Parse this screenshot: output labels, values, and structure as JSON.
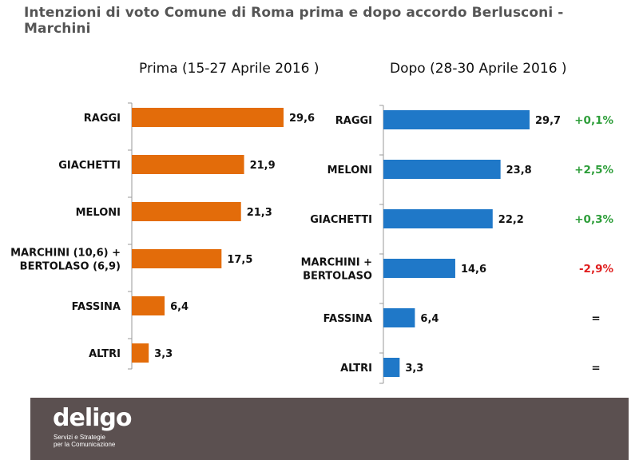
{
  "title": "Intenzioni di voto Comune di Roma prima e dopo accordo Berlusconi - Marchini",
  "footer": {
    "logo_text": "deligo",
    "tagline_line1": "Servizi e Strategie",
    "tagline_line2": "per la Comunicazione"
  },
  "colors": {
    "prima": "#e36c0a",
    "dopo": "#1f78c8",
    "positive": "#2e9e3a",
    "negative": "#e02020",
    "neutral": "#111111"
  },
  "chart_data": [
    {
      "type": "bar",
      "orientation": "horizontal",
      "title": "Prima (15-27 Aprile 2016 )",
      "categories": [
        "RAGGI",
        "GIACHETTI",
        "MELONI",
        "MARCHINI (10,6) + BERTOLASO (6,9)",
        "FASSINA",
        "ALTRI"
      ],
      "category_lines": [
        [
          "RAGGI"
        ],
        [
          "GIACHETTI"
        ],
        [
          "MELONI"
        ],
        [
          "MARCHINI (10,6) +",
          "BERTOLASO (6,9)"
        ],
        [
          "FASSINA"
        ],
        [
          "ALTRI"
        ]
      ],
      "values": [
        29.6,
        21.9,
        21.3,
        17.5,
        6.4,
        3.3
      ],
      "value_labels": [
        "29,6",
        "21,9",
        "21,3",
        "17,5",
        "6,4",
        "3,3"
      ],
      "xlim": [
        0,
        30
      ],
      "color": "#e36c0a"
    },
    {
      "type": "bar",
      "orientation": "horizontal",
      "title": "Dopo (28-30 Aprile 2016 )",
      "categories": [
        "RAGGI",
        "MELONI",
        "GIACHETTI",
        "MARCHINI + BERTOLASO",
        "FASSINA",
        "ALTRI"
      ],
      "category_lines": [
        [
          "RAGGI"
        ],
        [
          "MELONI"
        ],
        [
          "GIACHETTI"
        ],
        [
          "MARCHINI +",
          "BERTOLASO"
        ],
        [
          "FASSINA"
        ],
        [
          "ALTRI"
        ]
      ],
      "values": [
        29.7,
        23.8,
        22.2,
        14.6,
        6.4,
        3.3
      ],
      "value_labels": [
        "29,7",
        "23,8",
        "22,2",
        "14,6",
        "6,4",
        "3,3"
      ],
      "differences": [
        "+0,1%",
        "+2,5%",
        "+0,3%",
        "-2,9%",
        "=",
        "="
      ],
      "xlim": [
        0,
        30
      ],
      "color": "#1f78c8"
    }
  ]
}
